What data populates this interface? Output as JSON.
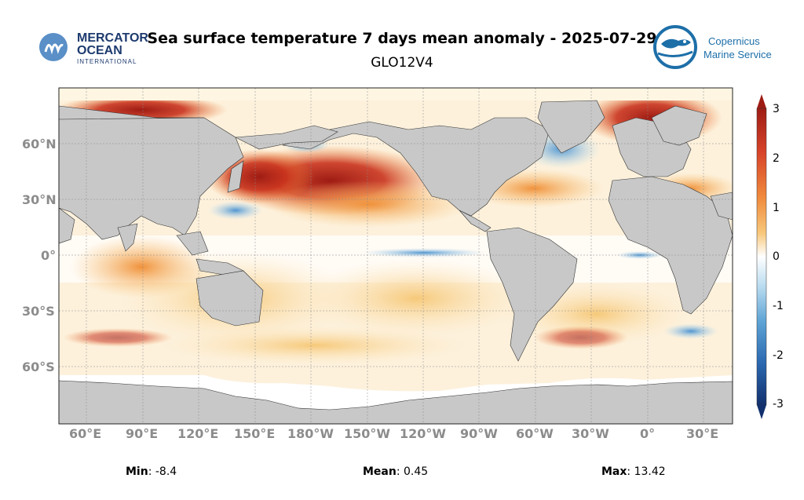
{
  "header": {
    "title": "Sea surface temperature 7 days mean anomaly - 2025-07-29",
    "subtitle": "GLO12V4",
    "left_logo": {
      "line1": "MERCATOR",
      "line2": "OCEAN",
      "line3": "INTERNATIONAL"
    },
    "right_logo": {
      "line1": "Copernicus",
      "line2": "Marine Service"
    }
  },
  "map": {
    "lat_labels": [
      "60°N",
      "30°N",
      "0°",
      "30°S",
      "60°S"
    ],
    "lon_labels": [
      "60°E",
      "90°E",
      "120°E",
      "150°E",
      "180°W",
      "150°W",
      "120°W",
      "90°W",
      "60°W",
      "30°W",
      "0°",
      "30°E"
    ],
    "colors": {
      "land": "#c8c8c8",
      "ice": "#ffffff",
      "warm_strong": "#9e1c14",
      "warm": "#e2571f",
      "warm_light": "#f6c97a",
      "cool": "#6fb1e0",
      "cool_strong": "#1f5aa8"
    }
  },
  "colorbar": {
    "ticks": [
      "3",
      "2",
      "1",
      "0",
      "-1",
      "-2",
      "-3"
    ],
    "stops": [
      "#9e1c14",
      "#d8442a",
      "#f08a3c",
      "#f8c77a",
      "#ffffff",
      "#b9dcf0",
      "#5da3d5",
      "#2a68b0",
      "#12306e"
    ]
  },
  "stats": {
    "min_label": "Min",
    "min_value": ": -8.4",
    "mean_label": "Mean",
    "mean_value": ": 0.45",
    "max_label": "Max",
    "max_value": ": 13.42"
  }
}
